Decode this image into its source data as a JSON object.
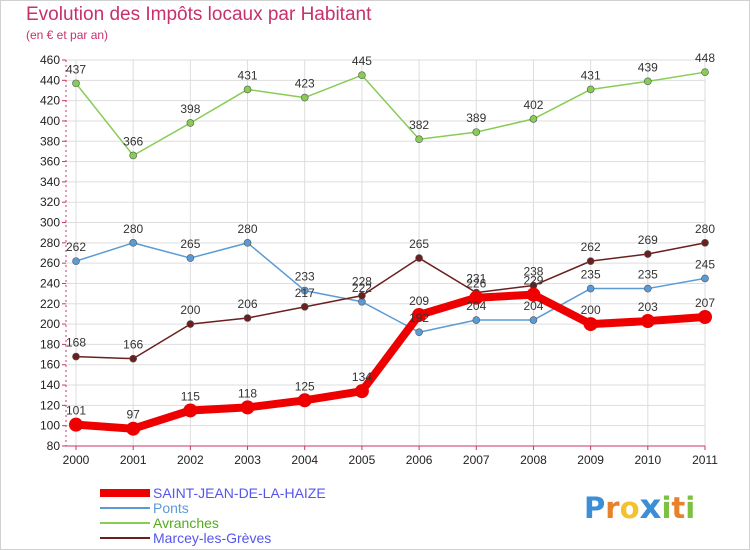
{
  "chart_data": {
    "type": "line",
    "title": "Evolution des Impôts locaux par Habitant",
    "subtitle": "(en € et par an)",
    "x": [
      "2000",
      "2001",
      "2002",
      "2003",
      "2004",
      "2005",
      "2006",
      "2007",
      "2008",
      "2009",
      "2010",
      "2011"
    ],
    "ylim": [
      80,
      460
    ],
    "yticks": [
      80,
      100,
      120,
      140,
      160,
      180,
      200,
      220,
      240,
      260,
      280,
      300,
      320,
      340,
      360,
      380,
      400,
      420,
      440,
      460
    ],
    "grid": true,
    "legend_position": "bottom-left",
    "series": [
      {
        "name": "SAINT-JEAN-DE-LA-HAIZE",
        "color": "#ee0000",
        "legend_color": "#5555ee",
        "values": [
          101,
          97,
          115,
          118,
          125,
          134,
          209,
          226,
          229,
          200,
          203,
          207
        ]
      },
      {
        "name": "Ponts",
        "color": "#5b9bd5",
        "legend_color": "#5b9bd5",
        "values": [
          262,
          280,
          265,
          280,
          233,
          222,
          192,
          204,
          204,
          235,
          235,
          245
        ]
      },
      {
        "name": "Avranches",
        "color": "#88cc55",
        "legend_color": "#55aa22",
        "values": [
          437,
          366,
          398,
          431,
          423,
          445,
          382,
          389,
          402,
          431,
          439,
          448
        ]
      },
      {
        "name": "Marcey-les-Grèves",
        "color": "#6b1f1f",
        "legend_color": "#5555ee",
        "values": [
          168,
          166,
          200,
          206,
          217,
          228,
          265,
          231,
          238,
          262,
          269,
          280
        ]
      }
    ]
  },
  "logo": {
    "letters": [
      "P",
      "r",
      "o",
      "x",
      "i",
      "t",
      "i"
    ],
    "colors": [
      "#3b8fd6",
      "#e8812b",
      "#f2c230",
      "#3b8fd6",
      "#7cc142",
      "#e8812b",
      "#7cc142"
    ]
  }
}
